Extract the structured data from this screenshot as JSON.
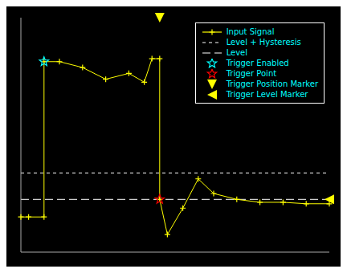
{
  "chart_data": {
    "type": "line",
    "xlim": [
      0,
      20
    ],
    "ylim": [
      -3.0,
      5.0
    ],
    "xticks": [
      0,
      2,
      4,
      6,
      8,
      10,
      12,
      14,
      16,
      18,
      20
    ],
    "yticks": [
      -3,
      -2,
      -1,
      0,
      1,
      2,
      3,
      4,
      5
    ],
    "tick_labels": false,
    "grid": false,
    "legend": "upper right",
    "series": [
      {
        "name": "Input Signal",
        "type": "line",
        "color": "#ffff00",
        "marker": "plus",
        "line_style": "solid",
        "x": [
          0,
          0.5,
          1.5,
          1.5,
          2.5,
          4.0,
          5.5,
          7.0,
          8.0,
          8.5,
          9.0,
          9.0,
          9.5,
          10.5,
          11.5,
          12.5,
          14.0,
          15.5,
          17.0,
          18.5,
          20.0
        ],
        "values": [
          -1.8,
          -1.8,
          -1.8,
          3.5,
          3.5,
          3.3,
          2.9,
          3.1,
          2.8,
          3.6,
          3.6,
          -1.2,
          -2.4,
          -1.5,
          -0.5,
          -1.0,
          -1.2,
          -1.3,
          -1.3,
          -1.35,
          -1.35
        ]
      },
      {
        "name": "Level + Hysteresis",
        "type": "hline",
        "color": "#ffffff",
        "line_style": "dashed",
        "values": [
          -0.3
        ]
      },
      {
        "name": "Level",
        "type": "hline",
        "color": "#ffffff",
        "line_style": "longdash",
        "values": [
          -1.2
        ]
      },
      {
        "name": "Trigger Enabled",
        "type": "scatter",
        "color": "#00ffff",
        "marker": "star",
        "x": [
          1.5
        ],
        "values": [
          3.5
        ]
      },
      {
        "name": "Trigger Point",
        "type": "scatter",
        "color": "#ff0000",
        "marker": "star",
        "x": [
          9.0
        ],
        "values": [
          -1.2
        ]
      },
      {
        "name": "Trigger Position Marker",
        "type": "scatter",
        "color": "#ffff00",
        "marker": "triangle-down",
        "x": [
          9.0
        ],
        "values": [
          5.0
        ]
      },
      {
        "name": "Trigger Level Marker",
        "type": "scatter",
        "color": "#ffff00",
        "marker": "triangle-left",
        "x": [
          20.0
        ],
        "values": [
          -1.2
        ]
      }
    ]
  }
}
